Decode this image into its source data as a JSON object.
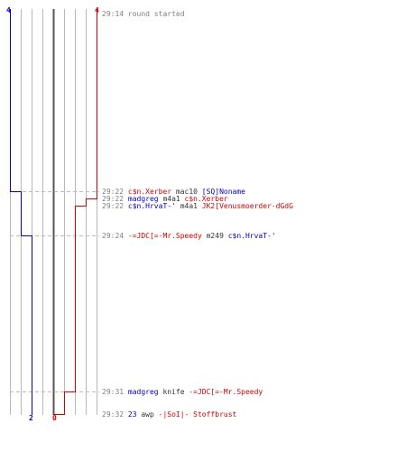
{
  "scores": {
    "blue_start": "4",
    "red_start": "4",
    "blue_end": "2",
    "red_end": "0"
  },
  "colors": {
    "blue": "#0000c8",
    "red": "#d00000",
    "grid": "#b8b8b8",
    "center": "#555555",
    "dash": "#bbbbbb"
  },
  "events": [
    {
      "time": "29:14",
      "a": "round started",
      "a_team": "none",
      "weapon": "",
      "b": "",
      "b_team": "none",
      "separator": "",
      "blue": 4,
      "red": 4
    },
    {
      "time": "29:22",
      "a": "c$n.Xerber",
      "a_team": "red",
      "weapon": "mac10",
      "b": "[SQ]Noname",
      "b_team": "blue",
      "separator": "",
      "blue": 3,
      "red": 4
    },
    {
      "time": "29:22",
      "a": "madgreg",
      "a_team": "blue",
      "weapon": "m4a1",
      "b": "c$n.Xerber",
      "b_team": "red",
      "separator": "",
      "blue": 3,
      "red": 3
    },
    {
      "time": "29:22",
      "a": "c$n.HrvaT-'",
      "a_team": "blue",
      "weapon": "m4a1",
      "b": "JK2[Venusmoerder-dGdG",
      "b_team": "red",
      "separator": "",
      "blue": 3,
      "red": 2
    },
    {
      "time": "29:24",
      "a": "-=JDC[=-Mr.Speedy",
      "a_team": "red",
      "weapon": "m249",
      "b": "c$n.HrvaT-'",
      "b_team": "blue",
      "separator": "dashed",
      "blue": 2,
      "red": 2
    },
    {
      "time": "29:31",
      "a": "madgreg",
      "a_team": "blue",
      "weapon": "knife",
      "b": "-=JDC[=-Mr.Speedy",
      "b_team": "red",
      "separator": "dashed",
      "blue": 2,
      "red": 1
    },
    {
      "time": "29:32",
      "a": "23",
      "a_team": "blue",
      "weapon": "awp",
      "b": "-|SoI|- Stoffbrust",
      "b_team": "red",
      "separator": "",
      "blue": 2,
      "red": 0
    }
  ]
}
